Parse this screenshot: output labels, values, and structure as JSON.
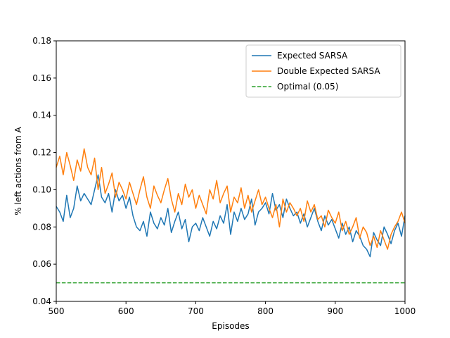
{
  "chart_data": {
    "type": "line",
    "xlabel": "Episodes",
    "ylabel": "% left actions from A",
    "x": [
      500,
      505,
      510,
      515,
      520,
      525,
      530,
      535,
      540,
      545,
      550,
      555,
      560,
      565,
      570,
      575,
      580,
      585,
      590,
      595,
      600,
      605,
      610,
      615,
      620,
      625,
      630,
      635,
      640,
      645,
      650,
      655,
      660,
      665,
      670,
      675,
      680,
      685,
      690,
      695,
      700,
      705,
      710,
      715,
      720,
      725,
      730,
      735,
      740,
      745,
      750,
      755,
      760,
      765,
      770,
      775,
      780,
      785,
      790,
      795,
      800,
      805,
      810,
      815,
      820,
      825,
      830,
      835,
      840,
      845,
      850,
      855,
      860,
      865,
      870,
      875,
      880,
      885,
      890,
      895,
      900,
      905,
      910,
      915,
      920,
      925,
      930,
      935,
      940,
      945,
      950,
      955,
      960,
      965,
      970,
      975,
      980,
      985,
      990,
      995,
      1000
    ],
    "series": [
      {
        "name": "Expected SARSA",
        "color": "#1f77b4",
        "dash": false,
        "values": [
          0.091,
          0.088,
          0.083,
          0.097,
          0.085,
          0.09,
          0.102,
          0.094,
          0.098,
          0.095,
          0.092,
          0.1,
          0.108,
          0.096,
          0.093,
          0.098,
          0.088,
          0.1,
          0.094,
          0.097,
          0.09,
          0.096,
          0.086,
          0.08,
          0.078,
          0.083,
          0.075,
          0.088,
          0.082,
          0.079,
          0.085,
          0.081,
          0.09,
          0.077,
          0.083,
          0.088,
          0.079,
          0.084,
          0.072,
          0.08,
          0.082,
          0.078,
          0.085,
          0.08,
          0.075,
          0.083,
          0.079,
          0.086,
          0.082,
          0.092,
          0.076,
          0.088,
          0.083,
          0.09,
          0.084,
          0.087,
          0.095,
          0.081,
          0.088,
          0.09,
          0.093,
          0.087,
          0.098,
          0.089,
          0.092,
          0.085,
          0.095,
          0.09,
          0.086,
          0.088,
          0.082,
          0.087,
          0.08,
          0.085,
          0.09,
          0.083,
          0.078,
          0.086,
          0.081,
          0.084,
          0.079,
          0.074,
          0.082,
          0.076,
          0.08,
          0.072,
          0.078,
          0.075,
          0.07,
          0.068,
          0.064,
          0.077,
          0.073,
          0.07,
          0.08,
          0.076,
          0.071,
          0.078,
          0.082,
          0.075,
          0.086
        ]
      },
      {
        "name": "Double Expected SARSA",
        "color": "#ff7f0e",
        "dash": false,
        "values": [
          0.112,
          0.118,
          0.108,
          0.12,
          0.113,
          0.105,
          0.116,
          0.11,
          0.122,
          0.112,
          0.108,
          0.117,
          0.1,
          0.112,
          0.098,
          0.103,
          0.109,
          0.096,
          0.104,
          0.1,
          0.095,
          0.104,
          0.098,
          0.092,
          0.1,
          0.107,
          0.096,
          0.09,
          0.102,
          0.097,
          0.093,
          0.1,
          0.106,
          0.095,
          0.088,
          0.098,
          0.092,
          0.103,
          0.096,
          0.1,
          0.09,
          0.097,
          0.092,
          0.087,
          0.1,
          0.095,
          0.105,
          0.093,
          0.098,
          0.102,
          0.088,
          0.096,
          0.093,
          0.101,
          0.09,
          0.097,
          0.088,
          0.094,
          0.1,
          0.092,
          0.096,
          0.09,
          0.085,
          0.092,
          0.08,
          0.095,
          0.088,
          0.093,
          0.09,
          0.086,
          0.09,
          0.083,
          0.094,
          0.088,
          0.092,
          0.084,
          0.086,
          0.08,
          0.089,
          0.085,
          0.082,
          0.088,
          0.078,
          0.083,
          0.076,
          0.08,
          0.085,
          0.074,
          0.08,
          0.077,
          0.07,
          0.075,
          0.069,
          0.078,
          0.073,
          0.068,
          0.076,
          0.08,
          0.083,
          0.088,
          0.082
        ]
      },
      {
        "name": "Optimal (0.05)",
        "color": "#2ca02c",
        "dash": true,
        "x": [
          500,
          1000
        ],
        "values": [
          0.05,
          0.05
        ]
      }
    ],
    "xlim": [
      500,
      1000
    ],
    "xticks": [
      500,
      600,
      700,
      800,
      900,
      1000
    ],
    "ylim": [
      0.04,
      0.18
    ],
    "yticks": [
      0.04,
      0.06,
      0.08,
      {
        "value": 0.1,
        "label": "0.10"
      },
      0.12,
      0.14,
      0.16,
      0.18
    ],
    "grid": false,
    "legend": "upper right"
  }
}
